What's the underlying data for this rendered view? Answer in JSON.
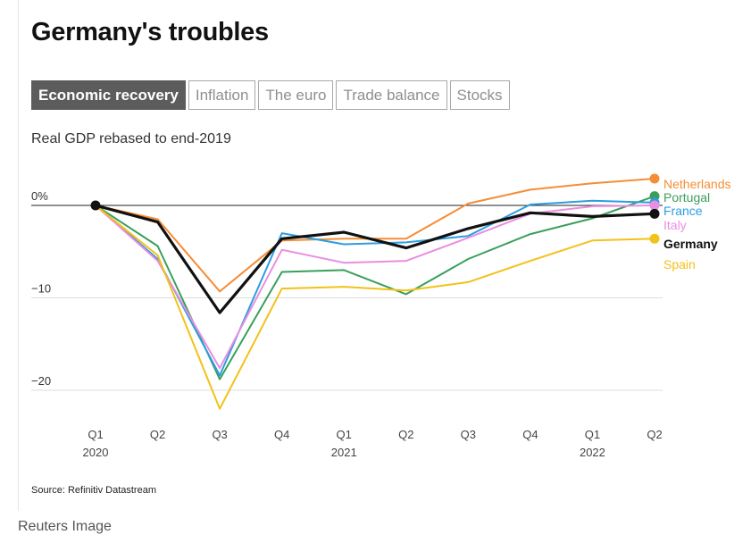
{
  "title": "Germany's troubles",
  "tabs": [
    {
      "label": "Economic recovery",
      "active": true
    },
    {
      "label": "Inflation",
      "active": false
    },
    {
      "label": "The euro",
      "active": false
    },
    {
      "label": "Trade balance",
      "active": false
    },
    {
      "label": "Stocks",
      "active": false
    }
  ],
  "subtitle": "Real GDP rebased to end-2019",
  "source": "Source: Refinitiv Datastream",
  "caption": "Reuters Image",
  "chart_data": {
    "type": "line",
    "x": [
      "Q1 2020",
      "Q2 2020",
      "Q3 2020",
      "Q4 2020",
      "Q1 2021",
      "Q2 2021",
      "Q3 2021",
      "Q4 2021",
      "Q1 2022",
      "Q2 2022"
    ],
    "x_tick_labels": [
      {
        "top": "Q1",
        "bottom": "2020"
      },
      {
        "top": "Q2",
        "bottom": ""
      },
      {
        "top": "Q3",
        "bottom": ""
      },
      {
        "top": "Q4",
        "bottom": ""
      },
      {
        "top": "Q1",
        "bottom": "2021"
      },
      {
        "top": "Q2",
        "bottom": ""
      },
      {
        "top": "Q3",
        "bottom": ""
      },
      {
        "top": "Q4",
        "bottom": ""
      },
      {
        "top": "Q1",
        "bottom": "2022"
      },
      {
        "top": "Q2",
        "bottom": ""
      }
    ],
    "y_ticks": [
      {
        "value": 0,
        "label": "0%"
      },
      {
        "value": -10,
        "label": "−10"
      },
      {
        "value": -20,
        "label": "−20"
      }
    ],
    "ylim": [
      -22.5,
      3.5
    ],
    "grid": true,
    "series": [
      {
        "name": "Netherlands",
        "color": "#f58d36",
        "bold": false,
        "values": [
          0,
          -1.5,
          -9.3,
          -3.8,
          -3.6,
          -3.6,
          0.2,
          1.7,
          2.4,
          2.9
        ]
      },
      {
        "name": "Portugal",
        "color": "#3a9f5c",
        "bold": false,
        "values": [
          0,
          -4.4,
          -18.8,
          -7.2,
          -7.0,
          -9.6,
          -5.8,
          -3.1,
          -1.4,
          1.0
        ]
      },
      {
        "name": "France",
        "color": "#2c9ee0",
        "bold": false,
        "values": [
          0,
          -5.8,
          -18.4,
          -3.0,
          -4.2,
          -4.0,
          -3.3,
          0.1,
          0.5,
          0.3
        ]
      },
      {
        "name": "Italy",
        "color": "#e98ee0",
        "bold": false,
        "values": [
          0,
          -6.0,
          -17.6,
          -4.8,
          -6.2,
          -6.0,
          -3.5,
          -0.9,
          -0.1,
          0.0
        ]
      },
      {
        "name": "Spain",
        "color": "#f2c218",
        "bold": false,
        "values": [
          0,
          -5.4,
          -22.0,
          -9.0,
          -8.8,
          -9.2,
          -8.3,
          -6.0,
          -3.8,
          -3.6
        ]
      },
      {
        "name": "Germany",
        "color": "#111111",
        "bold": true,
        "values": [
          0,
          -1.8,
          -11.6,
          -3.6,
          -2.9,
          -4.6,
          -2.5,
          -0.8,
          -1.2,
          -0.9
        ]
      }
    ]
  }
}
